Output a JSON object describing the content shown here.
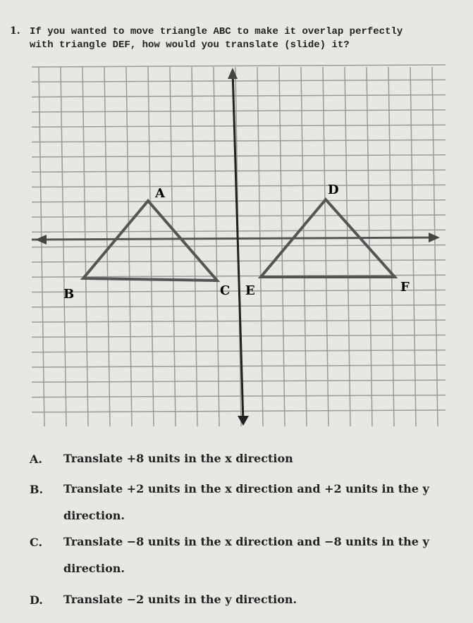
{
  "question": {
    "number": "1.",
    "text": "If you wanted to move triangle ABC to make it overlap perfectly with triangle DEF, how would you translate (slide) it?"
  },
  "figure": {
    "labels": [
      "A",
      "B",
      "C",
      "D",
      "E",
      "F"
    ]
  },
  "choices": [
    {
      "letter": "A.",
      "text": "Translate +8 units in the x direction"
    },
    {
      "letter": "B.",
      "text": "Translate +2 units in the x direction and +2 units in the y direction."
    },
    {
      "letter": "C.",
      "text": "Translate −8 units in the x direction and −8 units in the y direction."
    },
    {
      "letter": "D.",
      "text": "Translate −2 units in the y direction."
    }
  ]
}
